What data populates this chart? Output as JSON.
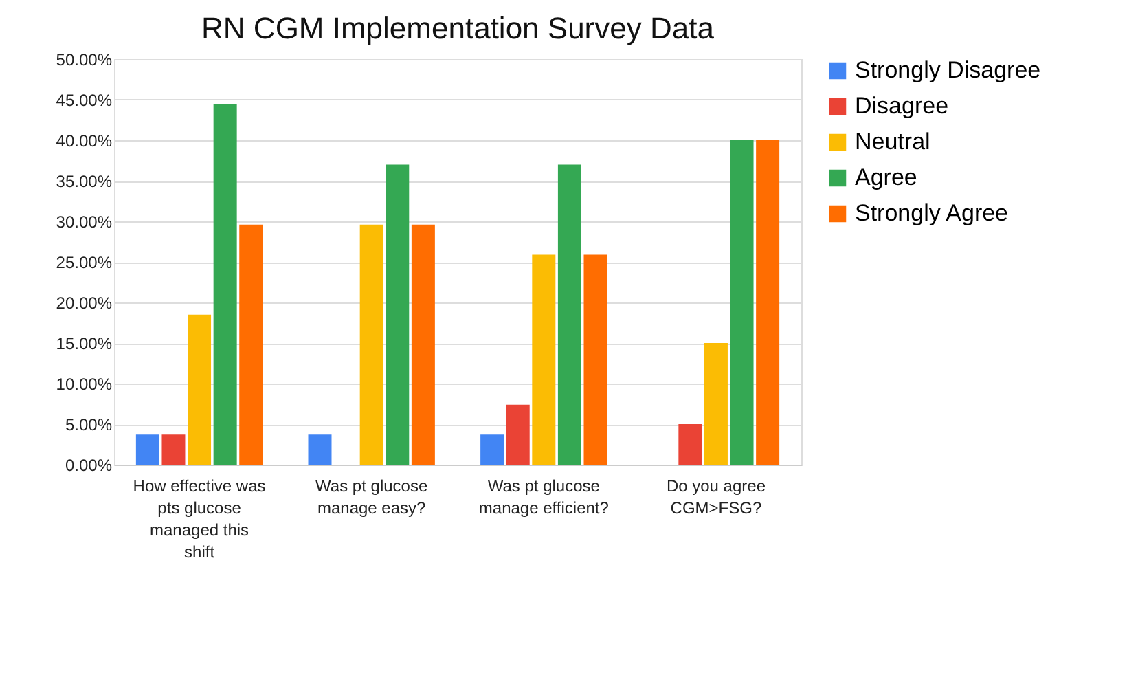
{
  "chart_data": {
    "type": "bar",
    "title": "RN CGM Implementation Survey Data",
    "categories": [
      "How effective was pts glucose managed this shift",
      "Was pt glucose manage easy?",
      "Was pt glucose manage efficient?",
      "Do you agree CGM>FSG?"
    ],
    "series": [
      {
        "name": "Strongly Disagree",
        "color": "#4285f4",
        "values": [
          3.7,
          3.7,
          3.7,
          0
        ]
      },
      {
        "name": "Disagree",
        "color": "#ea4335",
        "values": [
          3.7,
          0,
          7.4,
          5.0
        ]
      },
      {
        "name": "Neutral",
        "color": "#fbbc04",
        "values": [
          18.5,
          29.6,
          25.9,
          15.0
        ]
      },
      {
        "name": "Agree",
        "color": "#34a853",
        "values": [
          44.4,
          37.0,
          37.0,
          40.0
        ]
      },
      {
        "name": "Strongly Agree",
        "color": "#ff6d01",
        "values": [
          29.6,
          29.6,
          25.9,
          40.0
        ]
      }
    ],
    "ylim": [
      0,
      50
    ],
    "yticks": [
      {
        "value": 0,
        "label": "0.00%"
      },
      {
        "value": 5,
        "label": "5.00%"
      },
      {
        "value": 10,
        "label": "10.00%"
      },
      {
        "value": 15,
        "label": "15.00%"
      },
      {
        "value": 20,
        "label": "20.00%"
      },
      {
        "value": 25,
        "label": "25.00%"
      },
      {
        "value": 30,
        "label": "30.00%"
      },
      {
        "value": 35,
        "label": "35.00%"
      },
      {
        "value": 40,
        "label": "40.00%"
      },
      {
        "value": 45,
        "label": "45.00%"
      },
      {
        "value": 50,
        "label": "50.00%"
      }
    ],
    "grid": "y",
    "legend": "right"
  }
}
